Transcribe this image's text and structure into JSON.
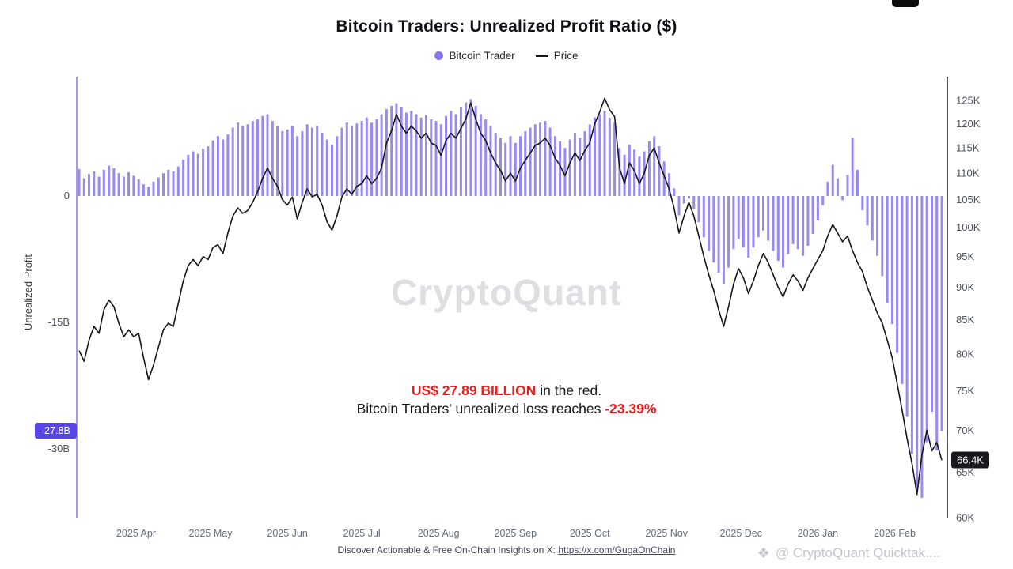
{
  "page": {
    "title": "Bitcoin Traders: Unrealized Profit Ratio ($)"
  },
  "legend": {
    "items": [
      {
        "label": "Bitcoin Trader",
        "marker": "dot"
      },
      {
        "label": "Price",
        "marker": "line"
      }
    ]
  },
  "colors": {
    "bar": "#8577f0",
    "price_line": "#17171b",
    "left_badge_bg": "#5847e6",
    "right_badge_bg": "#18181d",
    "annotation_red": "#ef1a1a"
  },
  "axes": {
    "left": {
      "title": "Unrealized Profit",
      "ticks": [
        {
          "label": "0",
          "value": 0
        },
        {
          "label": "-15B",
          "value": -15
        },
        {
          "label": "-30B",
          "value": -30
        }
      ],
      "badge": {
        "label": "-27.8B",
        "value": -27.8
      }
    },
    "right": {
      "ticks": [
        {
          "label": "125K",
          "value": 125
        },
        {
          "label": "120K",
          "value": 120
        },
        {
          "label": "115K",
          "value": 115
        },
        {
          "label": "110K",
          "value": 110
        },
        {
          "label": "105K",
          "value": 105
        },
        {
          "label": "100K",
          "value": 100
        },
        {
          "label": "95K",
          "value": 95
        },
        {
          "label": "90K",
          "value": 90
        },
        {
          "label": "85K",
          "value": 85
        },
        {
          "label": "80K",
          "value": 80
        },
        {
          "label": "75K",
          "value": 75
        },
        {
          "label": "70K",
          "value": 70
        },
        {
          "label": "65K",
          "value": 65
        },
        {
          "label": "60K",
          "value": 60
        }
      ],
      "badge": {
        "label": "66.4K",
        "value": 66.4
      }
    },
    "x": {
      "ticks": [
        {
          "label": "2025 Apr",
          "index": 11.5
        },
        {
          "label": "2025 May",
          "index": 26.5
        },
        {
          "label": "2025 Jun",
          "index": 42
        },
        {
          "label": "2025 Jul",
          "index": 57
        },
        {
          "label": "2025 Aug",
          "index": 72.5
        },
        {
          "label": "2025 Sep",
          "index": 88
        },
        {
          "label": "2025 Oct",
          "index": 103
        },
        {
          "label": "2025 Nov",
          "index": 118.5
        },
        {
          "label": "2025 Dec",
          "index": 133.5
        },
        {
          "label": "2026 Jan",
          "index": 149
        },
        {
          "label": "2026 Feb",
          "index": 164.5
        }
      ]
    }
  },
  "annotation": {
    "line1_strong": "US$ 27.89 BILLION",
    "line1_rest": " in the red.",
    "line2_pre": "Bitcoin Traders' unrealized loss reaches ",
    "line2_strong": "-23.39%"
  },
  "watermark_center": "CryptoQuant",
  "watermark_corner": "@ CryptoQuant Quicktak....",
  "footer": {
    "prefix": "Discover Actionable & Free On-Chain Insights on X: ",
    "link": "https://x.com/GugaOnChain"
  },
  "chart_data": {
    "type": "combo",
    "subtypes": [
      "bar",
      "line"
    ],
    "title": "Bitcoin Traders: Unrealized Profit Ratio ($)",
    "legend_position": "top",
    "x": {
      "start": "2025-03-09",
      "step_days": 2,
      "points": 175
    },
    "left_axis": {
      "label": "Unrealized Profit",
      "unit": "billion USD",
      "scale": "linear",
      "ylim": [
        -38,
        14
      ],
      "current_value": -27.8
    },
    "right_axis": {
      "label": "Price",
      "unit": "thousand USD",
      "scale": "log",
      "ylim": [
        60,
        130
      ],
      "current_value": 66.4
    },
    "series": [
      {
        "name": "Bitcoin Trader",
        "axis": "left",
        "unit": "billion USD",
        "values": [
          3.2,
          2.1,
          2.6,
          2.9,
          2.3,
          3.1,
          3.6,
          3.3,
          2.7,
          2.3,
          2.8,
          2.4,
          2.0,
          1.4,
          1.1,
          1.7,
          2.2,
          2.7,
          3.1,
          2.9,
          3.5,
          4.3,
          4.9,
          5.3,
          5.0,
          5.6,
          5.9,
          6.6,
          7.1,
          6.7,
          7.3,
          8.1,
          8.7,
          8.3,
          8.5,
          8.9,
          9.1,
          9.5,
          9.7,
          8.9,
          8.3,
          7.7,
          7.9,
          8.3,
          7.1,
          7.7,
          8.5,
          8.1,
          8.3,
          7.5,
          6.7,
          6.1,
          7.1,
          8.1,
          8.7,
          8.3,
          8.6,
          8.9,
          9.3,
          8.7,
          9.1,
          9.7,
          10.3,
          10.7,
          11.0,
          10.5,
          9.9,
          10.1,
          9.7,
          9.3,
          9.6,
          9.1,
          8.9,
          8.5,
          9.5,
          10.1,
          9.7,
          10.5,
          11.1,
          11.5,
          10.7,
          9.7,
          9.1,
          8.3,
          7.5,
          6.9,
          6.3,
          7.1,
          6.3,
          7.1,
          7.7,
          8.1,
          8.5,
          8.7,
          8.9,
          8.1,
          7.1,
          6.5,
          5.7,
          6.7,
          7.5,
          6.9,
          7.7,
          8.5,
          9.3,
          9.7,
          10.1,
          9.3,
          8.7,
          5.7,
          4.9,
          6.1,
          5.5,
          4.7,
          5.3,
          6.5,
          7.1,
          5.9,
          4.1,
          2.7,
          0.9,
          -2.3,
          -0.9,
          -0.3,
          -1.5,
          -3.1,
          -4.9,
          -6.5,
          -7.9,
          -9.1,
          -10.5,
          -8.5,
          -6.3,
          -5.1,
          -6.1,
          -7.3,
          -6.1,
          -4.9,
          -4.1,
          -5.3,
          -6.5,
          -7.7,
          -8.5,
          -6.9,
          -5.7,
          -6.3,
          -7.1,
          -5.9,
          -4.5,
          -2.9,
          -1.1,
          1.7,
          3.7,
          2.1,
          -0.5,
          2.5,
          6.9,
          3.1,
          -1.7,
          -3.5,
          -5.3,
          -7.1,
          -9.5,
          -12.7,
          -15.2,
          -18.6,
          -22.3,
          -26.2,
          -30.6,
          -34.8,
          -35.8,
          -29.2,
          -25.6,
          -30.2,
          -27.89
        ]
      },
      {
        "name": "Price",
        "axis": "right",
        "unit": "thousand USD",
        "scale": "log",
        "values": [
          80.5,
          79.0,
          82.0,
          84.0,
          83.0,
          86.5,
          88.0,
          87.0,
          84.5,
          82.5,
          83.5,
          82.5,
          83.0,
          79.5,
          76.5,
          78.5,
          81.0,
          83.5,
          84.5,
          84.0,
          87.5,
          91.0,
          93.5,
          94.5,
          93.5,
          95.0,
          94.5,
          96.5,
          97.0,
          95.5,
          99.0,
          102.0,
          103.5,
          102.5,
          103.0,
          104.5,
          106.5,
          109.0,
          111.0,
          109.0,
          107.5,
          105.0,
          104.0,
          105.5,
          101.5,
          104.5,
          107.0,
          105.5,
          106.0,
          104.0,
          101.0,
          99.5,
          102.0,
          105.5,
          107.0,
          106.0,
          107.5,
          108.0,
          109.5,
          108.0,
          109.0,
          111.0,
          116.0,
          118.5,
          122.0,
          119.5,
          118.0,
          119.5,
          118.5,
          117.0,
          118.0,
          116.0,
          115.5,
          113.5,
          116.5,
          118.0,
          117.0,
          119.0,
          121.0,
          124.5,
          121.0,
          118.0,
          116.5,
          114.0,
          112.0,
          110.5,
          108.5,
          110.0,
          108.5,
          111.0,
          112.5,
          114.0,
          115.5,
          116.0,
          117.0,
          115.5,
          113.0,
          111.5,
          109.5,
          112.0,
          114.0,
          112.5,
          114.5,
          116.0,
          120.0,
          122.5,
          125.5,
          123.0,
          121.5,
          111.0,
          108.0,
          112.0,
          110.5,
          108.0,
          110.0,
          113.5,
          115.0,
          112.0,
          109.5,
          107.0,
          103.5,
          99.0,
          102.0,
          104.5,
          102.0,
          98.5,
          95.0,
          92.0,
          89.5,
          86.5,
          84.0,
          87.0,
          90.5,
          93.0,
          91.5,
          89.0,
          91.0,
          93.5,
          95.5,
          94.0,
          92.0,
          90.0,
          88.5,
          90.5,
          92.0,
          91.0,
          89.5,
          91.5,
          93.0,
          94.5,
          96.0,
          98.5,
          100.5,
          99.0,
          97.5,
          98.5,
          96.0,
          94.0,
          92.5,
          90.0,
          88.0,
          86.0,
          84.5,
          82.0,
          79.5,
          76.0,
          72.5,
          69.0,
          66.0,
          62.5,
          67.0,
          70.0,
          67.5,
          68.5,
          66.4
        ]
      }
    ]
  }
}
